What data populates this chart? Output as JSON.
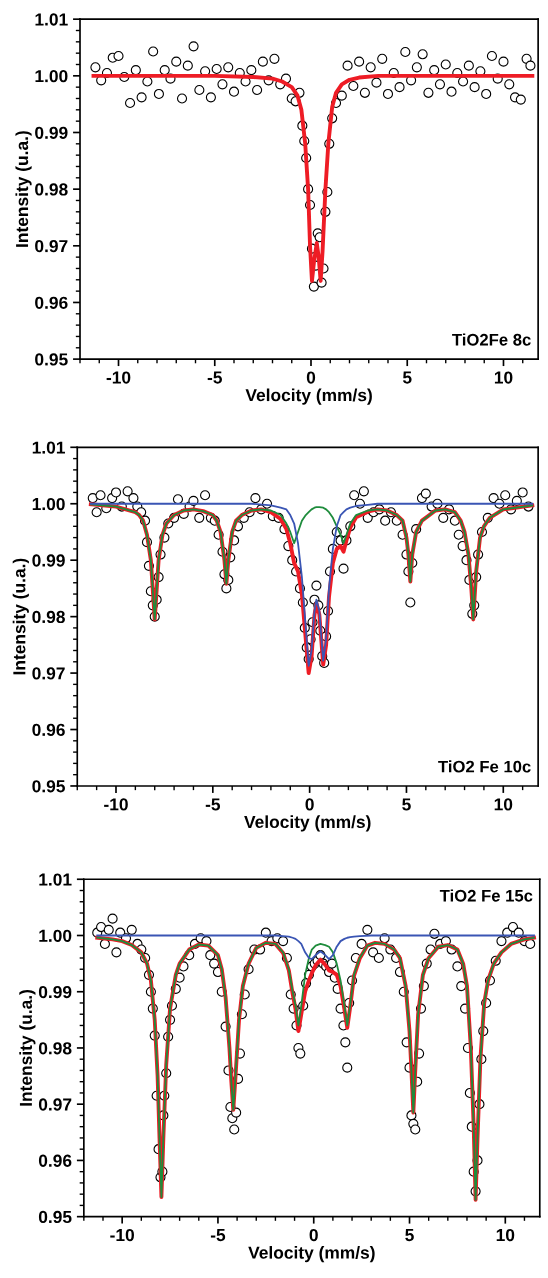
{
  "chart_data": [
    {
      "type": "scatter",
      "xlabel": "Velocity (mm/s)",
      "ylabel": "Intensity (u.a.)",
      "annotations": [
        "TiO2Fe 8c"
      ],
      "grid": false,
      "xlim": [
        -12,
        11.8
      ],
      "ylim": [
        0.95,
        1.01
      ],
      "xticks": [
        -10,
        -5,
        0,
        5,
        10
      ],
      "yticks": [
        {
          "value": 0.95,
          "label": "0.95"
        },
        {
          "value": 0.96,
          "label": "0.96"
        },
        {
          "value": 0.97,
          "label": "0.97"
        },
        {
          "value": 0.98,
          "label": "0.98"
        },
        {
          "value": 0.99,
          "label": "0.99"
        },
        {
          "value": 1.0,
          "label": "1.00"
        },
        {
          "value": 1.01,
          "label": "1.01"
        }
      ],
      "series": [
        {
          "marker": "circle",
          "color": "#000000",
          "x": [
            -11.2,
            -10.9,
            -10.6,
            -10.3,
            -10.0,
            -9.7,
            -9.4,
            -9.1,
            -8.8,
            -8.5,
            -8.2,
            -7.9,
            -7.6,
            -7.3,
            -7.0,
            -6.7,
            -6.4,
            -6.1,
            -5.8,
            -5.5,
            -5.2,
            -4.9,
            -4.6,
            -4.3,
            -4.0,
            -3.7,
            -3.4,
            -3.1,
            -2.8,
            -2.5,
            -2.2,
            -1.9,
            -1.6,
            -1.3,
            -1.0,
            -0.8,
            -0.6,
            -0.45,
            -0.35,
            -0.25,
            -0.15,
            -0.05,
            0.05,
            0.15,
            0.25,
            0.35,
            0.45,
            0.55,
            0.65,
            0.75,
            0.85,
            0.95,
            1.1,
            1.3,
            1.6,
            1.9,
            2.2,
            2.5,
            2.8,
            3.1,
            3.4,
            3.7,
            4.0,
            4.3,
            4.6,
            4.9,
            5.2,
            5.5,
            5.8,
            6.1,
            6.4,
            6.7,
            7.0,
            7.3,
            7.6,
            7.9,
            8.2,
            8.5,
            8.8,
            9.1,
            9.4,
            9.7,
            10.0,
            10.3,
            10.6,
            10.9,
            11.2,
            11.4
          ],
          "values": [
            1.0015,
            0.9992,
            1.0005,
            1.0032,
            1.0035,
            0.9998,
            0.9952,
            1.001,
            0.9962,
            0.999,
            1.0043,
            0.9968,
            1.001,
            0.9995,
            1.0025,
            0.996,
            1.0018,
            1.0052,
            0.9975,
            1.0008,
            0.9962,
            1.0012,
            0.9985,
            1.0015,
            0.9972,
            1.0005,
            0.999,
            1.001,
            0.9975,
            1.0025,
            0.9992,
            1.003,
            0.9985,
            0.9995,
            0.996,
            0.9955,
            0.997,
            0.9912,
            0.9885,
            0.9855,
            0.98,
            0.9772,
            0.9695,
            0.9628,
            0.9665,
            0.9722,
            0.9715,
            0.9635,
            0.966,
            0.976,
            0.9795,
            0.988,
            0.9925,
            0.9952,
            0.9965,
            1.0018,
            0.9982,
            1.0025,
            0.997,
            1.0015,
            0.9988,
            1.003,
            0.9968,
            1.0005,
            0.998,
            1.0042,
            0.9992,
            1.0015,
            1.0038,
            0.997,
            1.001,
            0.9985,
            1.002,
            0.9972,
            1.0005,
            0.999,
            1.0018,
            0.998,
            1.0008,
            0.9968,
            1.0035,
            0.9995,
            1.0025,
            0.9985,
            0.9962,
            0.9958,
            1.003,
            1.0018
          ]
        },
        {
          "type": "line",
          "color": "#ee1c25",
          "x": [
            -11.3,
            -8,
            -5,
            -3,
            -2,
            -1.5,
            -1,
            -0.7,
            -0.5,
            -0.3,
            -0.15,
            -0.05,
            0.05,
            0.15,
            0.3,
            0.4,
            0.5,
            0.6,
            0.75,
            0.9,
            1.1,
            1.3,
            1.6,
            2,
            2.5,
            3.5,
            6,
            9,
            11.5
          ],
          "values": [
            1.0,
            1.0,
            1.0,
            0.9998,
            0.9995,
            0.999,
            0.998,
            0.9965,
            0.994,
            0.988,
            0.98,
            0.97,
            0.9638,
            0.967,
            0.9705,
            0.968,
            0.9638,
            0.969,
            0.98,
            0.988,
            0.9945,
            0.997,
            0.9985,
            0.9993,
            0.9997,
            1.0,
            1.0,
            1.0,
            1.0
          ]
        }
      ]
    },
    {
      "type": "scatter",
      "xlabel": "Velocity (mm/s)",
      "ylabel": "Intensity (u.a.)",
      "annotations": [
        "TiO2 Fe 10c"
      ],
      "grid": false,
      "xlim": [
        -12,
        11.8
      ],
      "ylim": [
        0.95,
        1.01
      ],
      "xticks": [
        -10,
        -5,
        0,
        5,
        10
      ],
      "yticks": [
        {
          "value": 0.95,
          "label": "0.95"
        },
        {
          "value": 0.96,
          "label": "0.96"
        },
        {
          "value": 0.97,
          "label": "0.97"
        },
        {
          "value": 0.98,
          "label": "0.98"
        },
        {
          "value": 0.99,
          "label": "0.99"
        },
        {
          "value": 1.0,
          "label": "1.00"
        },
        {
          "value": 1.01,
          "label": "1.01"
        }
      ],
      "series": [
        {
          "marker": "circle",
          "color": "#000000",
          "x": [
            -11.2,
            -11.0,
            -10.8,
            -10.5,
            -10.2,
            -10.0,
            -9.7,
            -9.4,
            -9.1,
            -8.9,
            -8.7,
            -8.5,
            -8.4,
            -8.3,
            -8.2,
            -8.1,
            -8.0,
            -7.9,
            -7.8,
            -7.7,
            -7.5,
            -7.3,
            -7.0,
            -6.8,
            -6.5,
            -6.2,
            -6.0,
            -5.7,
            -5.4,
            -5.1,
            -4.9,
            -4.7,
            -4.5,
            -4.4,
            -4.3,
            -4.2,
            -4.1,
            -3.9,
            -3.7,
            -3.4,
            -3.1,
            -2.8,
            -2.5,
            -2.2,
            -1.9,
            -1.6,
            -1.3,
            -1.1,
            -0.9,
            -0.7,
            -0.5,
            -0.35,
            -0.25,
            -0.15,
            -0.05,
            0.05,
            0.15,
            0.25,
            0.35,
            0.45,
            0.55,
            0.65,
            0.75,
            0.85,
            0.95,
            1.05,
            1.2,
            1.4,
            1.6,
            1.75,
            1.9,
            2.1,
            2.3,
            2.6,
            2.8,
            3.0,
            3.3,
            3.6,
            3.9,
            4.2,
            4.5,
            4.8,
            5.0,
            5.1,
            5.2,
            5.3,
            5.5,
            5.8,
            6.0,
            6.3,
            6.6,
            6.9,
            7.2,
            7.5,
            7.7,
            7.9,
            8.1,
            8.25,
            8.4,
            8.5,
            8.6,
            8.7,
            8.9,
            9.2,
            9.5,
            9.8,
            10.1,
            10.4,
            10.7,
            11.0,
            11.3
          ],
          "values": [
            1.001,
            0.9985,
            1.0015,
            0.9992,
            1.001,
            1.002,
            0.9995,
            1.0022,
            1.001,
            0.9995,
            0.9985,
            0.997,
            0.9932,
            0.989,
            0.9845,
            0.982,
            0.98,
            0.983,
            0.987,
            0.991,
            0.994,
            0.9965,
            0.9975,
            1.0008,
            0.9982,
            0.9995,
            1.0005,
            0.9975,
            1.0015,
            0.9975,
            0.997,
            0.9945,
            0.9915,
            0.9875,
            0.985,
            0.9865,
            0.9905,
            0.9935,
            0.996,
            0.9975,
            0.9985,
            1.001,
            0.999,
            1.0,
            0.9978,
            0.9975,
            0.9955,
            0.9925,
            0.99,
            0.988,
            0.985,
            0.9825,
            0.978,
            0.9745,
            0.9725,
            0.976,
            0.979,
            0.983,
            0.9855,
            0.982,
            0.9775,
            0.973,
            0.9718,
            0.9765,
            0.981,
            0.988,
            0.992,
            0.995,
            0.9935,
            0.9885,
            0.9935,
            0.996,
            1.0015,
            1.0,
            1.0022,
            0.9975,
            0.9985,
            0.999,
            0.997,
            0.9985,
            0.997,
            0.9945,
            0.991,
            0.988,
            0.9825,
            0.9895,
            0.9955,
            1.001,
            1.0018,
            0.9995,
            1.0,
            0.9975,
            0.999,
            0.997,
            0.9945,
            0.9925,
            0.99,
            0.9865,
            0.9805,
            0.982,
            0.987,
            0.991,
            0.995,
            0.9975,
            1.001,
            1.0,
            1.0015,
            0.999,
            1.0005,
            1.002,
            0.9995
          ]
        },
        {
          "type": "line",
          "color": "#ee1c25",
          "x": [
            -11.3,
            -10,
            -9,
            -8.8,
            -8.6,
            -8.4,
            -8.2,
            -8.0,
            -7.8,
            -7.6,
            -7.4,
            -7.0,
            -6.5,
            -6,
            -5.5,
            -5,
            -4.8,
            -4.6,
            -4.4,
            -4.3,
            -4.2,
            -4.0,
            -3.8,
            -3.5,
            -3,
            -2.5,
            -2,
            -1.5,
            -1.2,
            -1.0,
            -0.8,
            -0.6,
            -0.4,
            -0.2,
            -0.05,
            0.1,
            0.25,
            0.35,
            0.5,
            0.7,
            0.85,
            1.0,
            1.2,
            1.4,
            1.6,
            1.75,
            1.9,
            2.1,
            2.4,
            3,
            3.5,
            4,
            4.5,
            4.8,
            5.0,
            5.1,
            5.2,
            5.3,
            5.5,
            5.8,
            6.5,
            7,
            7.5,
            7.8,
            8.0,
            8.2,
            8.35,
            8.45,
            8.6,
            8.8,
            9.0,
            9.3,
            10,
            11.5
          ],
          "values": [
            0.9999,
            0.9995,
            0.9985,
            0.998,
            0.997,
            0.9945,
            0.99,
            0.9795,
            0.99,
            0.9945,
            0.9965,
            0.998,
            0.9988,
            0.999,
            0.9987,
            0.998,
            0.997,
            0.995,
            0.99,
            0.9858,
            0.99,
            0.995,
            0.997,
            0.998,
            0.9988,
            0.999,
            0.9985,
            0.9973,
            0.9955,
            0.993,
            0.9895,
            0.988,
            0.984,
            0.976,
            0.97,
            0.973,
            0.9803,
            0.9824,
            0.9804,
            0.9715,
            0.975,
            0.9835,
            0.9895,
            0.992,
            0.9925,
            0.9915,
            0.9935,
            0.9958,
            0.9976,
            0.9986,
            0.999,
            0.9988,
            0.998,
            0.997,
            0.994,
            0.991,
            0.9862,
            0.991,
            0.995,
            0.997,
            0.9988,
            0.999,
            0.9985,
            0.997,
            0.995,
            0.991,
            0.985,
            0.9795,
            0.988,
            0.994,
            0.996,
            0.9975,
            0.999,
            0.9997
          ]
        },
        {
          "type": "line",
          "color": "#1e8c3c",
          "x": [
            -11.3,
            -10,
            -9,
            -8.8,
            -8.6,
            -8.4,
            -8.2,
            -8.0,
            -7.8,
            -7.6,
            -7.4,
            -7.0,
            -6.5,
            -6,
            -5.5,
            -5,
            -4.8,
            -4.6,
            -4.4,
            -4.3,
            -4.2,
            -4.0,
            -3.8,
            -3.5,
            -3,
            -2.5,
            -2,
            -1.5,
            -1.2,
            -1.0,
            -0.8,
            -0.6,
            -0.4,
            -0.2,
            -0.05,
            0.1,
            0.25,
            0.35,
            0.5,
            0.7,
            0.85,
            1.0,
            1.2,
            1.4,
            1.6,
            1.75,
            1.9,
            2.1,
            2.4,
            3,
            3.5,
            4,
            4.5,
            4.8,
            5.0,
            5.1,
            5.2,
            5.3,
            5.5,
            5.8,
            6.5,
            7,
            7.5,
            7.8,
            8.0,
            8.2,
            8.35,
            8.45,
            8.6,
            8.8,
            9.0,
            9.3,
            10,
            11.5
          ],
          "values": [
            0.9999,
            0.9995,
            0.9985,
            0.998,
            0.997,
            0.9945,
            0.99,
            0.9795,
            0.99,
            0.9945,
            0.9965,
            0.998,
            0.9988,
            0.999,
            0.9987,
            0.998,
            0.997,
            0.995,
            0.99,
            0.9858,
            0.99,
            0.995,
            0.997,
            0.998,
            0.9988,
            0.999,
            0.9988,
            0.998,
            0.9965,
            0.995,
            0.993,
            0.995,
            0.997,
            0.998,
            0.9985,
            0.999,
            0.9993,
            0.9994,
            0.9994,
            0.9993,
            0.999,
            0.9985,
            0.9975,
            0.996,
            0.9945,
            0.993,
            0.9945,
            0.9965,
            0.998,
            0.9988,
            0.999,
            0.9988,
            0.998,
            0.997,
            0.994,
            0.991,
            0.9862,
            0.991,
            0.995,
            0.997,
            0.9988,
            0.999,
            0.9985,
            0.997,
            0.995,
            0.991,
            0.985,
            0.9795,
            0.988,
            0.994,
            0.996,
            0.9975,
            0.999,
            0.9997
          ]
        },
        {
          "type": "line",
          "color": "#3a55b4",
          "x": [
            -11.3,
            -10,
            -9,
            -8,
            -6,
            -4,
            -3,
            -2,
            -1.5,
            -1.2,
            -1.0,
            -0.8,
            -0.6,
            -0.4,
            -0.2,
            -0.05,
            0.1,
            0.25,
            0.35,
            0.5,
            0.7,
            0.85,
            1.0,
            1.2,
            1.4,
            1.6,
            1.75,
            1.9,
            2.1,
            2.4,
            3,
            3.5,
            5,
            8,
            11.5
          ],
          "values": [
            1.0,
            1.0,
            1.0,
            1.0,
            1.0,
            1.0,
            1.0,
            0.9997,
            0.9993,
            0.999,
            0.998,
            0.9965,
            0.993,
            0.987,
            0.978,
            0.9713,
            0.974,
            0.981,
            0.983,
            0.981,
            0.9722,
            0.976,
            0.985,
            0.992,
            0.996,
            0.998,
            0.9985,
            0.999,
            0.9993,
            0.9996,
            0.9998,
            1.0,
            1.0,
            1.0,
            1.0
          ]
        }
      ]
    },
    {
      "type": "scatter",
      "xlabel": "Velocity (mm/s)",
      "ylabel": "Intensity (u.a.)",
      "annotations": [
        "TiO2 Fe 15c"
      ],
      "grid": false,
      "xlim": [
        -12,
        11.8
      ],
      "ylim": [
        0.95,
        1.01
      ],
      "xticks": [
        -10,
        -5,
        0,
        5,
        10
      ],
      "yticks": [
        {
          "value": 0.95,
          "label": "0.95"
        },
        {
          "value": 0.96,
          "label": "0.96"
        },
        {
          "value": 0.97,
          "label": "0.97"
        },
        {
          "value": 0.98,
          "label": "0.98"
        },
        {
          "value": 0.99,
          "label": "0.99"
        },
        {
          "value": 1.0,
          "label": "1.00"
        },
        {
          "value": 1.01,
          "label": "1.01"
        }
      ],
      "series": [
        {
          "marker": "circle",
          "color": "#000000",
          "x": [
            -11.3,
            -11.1,
            -10.9,
            -10.7,
            -10.5,
            -10.3,
            -10.1,
            -9.8,
            -9.5,
            -9.2,
            -9.0,
            -8.8,
            -8.6,
            -8.5,
            -8.4,
            -8.3,
            -8.2,
            -8.1,
            -8.0,
            -7.9,
            -7.85,
            -7.8,
            -7.7,
            -7.6,
            -7.5,
            -7.4,
            -7.2,
            -7.0,
            -6.8,
            -6.5,
            -6.2,
            -5.9,
            -5.6,
            -5.4,
            -5.2,
            -5.0,
            -4.8,
            -4.6,
            -4.45,
            -4.35,
            -4.25,
            -4.15,
            -4.05,
            -3.95,
            -3.85,
            -3.75,
            -3.6,
            -3.4,
            -3.1,
            -2.8,
            -2.5,
            -2.2,
            -1.9,
            -1.6,
            -1.4,
            -1.2,
            -1.05,
            -0.9,
            -0.8,
            -0.7,
            -0.55,
            -0.4,
            -0.25,
            -0.1,
            0.05,
            0.2,
            0.35,
            0.5,
            0.65,
            0.8,
            0.95,
            1.1,
            1.25,
            1.4,
            1.55,
            1.65,
            1.75,
            1.85,
            2.0,
            2.2,
            2.5,
            2.8,
            3.1,
            3.4,
            3.7,
            4.0,
            4.3,
            4.5,
            4.7,
            4.85,
            5.0,
            5.1,
            5.2,
            5.3,
            5.4,
            5.5,
            5.6,
            5.75,
            5.9,
            6.1,
            6.3,
            6.6,
            6.9,
            7.2,
            7.5,
            7.7,
            7.9,
            8.05,
            8.15,
            8.25,
            8.35,
            8.45,
            8.55,
            8.65,
            8.75,
            8.85,
            9.0,
            9.2,
            9.5,
            9.8,
            10.1,
            10.4,
            10.7,
            11.0,
            11.3
          ],
          "values": [
            1.0005,
            1.0015,
            0.9985,
            1.001,
            1.003,
            0.997,
            1.0005,
            0.9995,
            1.001,
            0.9985,
            0.9975,
            0.996,
            0.993,
            0.99,
            0.987,
            0.9822,
            0.9715,
            0.962,
            0.957,
            0.958,
            0.968,
            0.9715,
            0.9755,
            0.982,
            0.985,
            0.9875,
            0.9905,
            0.9925,
            0.9945,
            0.9965,
            0.9985,
            0.9995,
            0.999,
            0.9965,
            0.995,
            0.9935,
            0.99,
            0.9838,
            0.976,
            0.9695,
            0.9675,
            0.9655,
            0.9685,
            0.9745,
            0.979,
            0.986,
            0.9895,
            0.994,
            0.9975,
            0.9975,
            1.0005,
            0.999,
            0.9995,
            0.999,
            0.996,
            0.9895,
            0.987,
            0.984,
            0.98,
            0.979,
            0.9875,
            0.9915,
            0.993,
            0.9945,
            0.995,
            0.9955,
            0.9965,
            0.995,
            0.9945,
            0.9935,
            0.995,
            0.9925,
            0.9905,
            0.987,
            0.984,
            0.981,
            0.9765,
            0.988,
            0.992,
            0.996,
            0.9985,
            1.001,
            0.997,
            0.996,
            0.9995,
            0.9975,
            0.996,
            0.9935,
            0.99,
            0.981,
            0.9765,
            0.968,
            0.9665,
            0.9655,
            0.974,
            0.979,
            0.987,
            0.991,
            0.995,
            0.9975,
            1.0003,
            0.9985,
            0.999,
            0.9975,
            0.9945,
            0.991,
            0.987,
            0.98,
            0.972,
            0.966,
            0.958,
            0.9545,
            0.96,
            0.97,
            0.978,
            0.983,
            0.988,
            0.992,
            0.9955,
            0.999,
            1.0005,
            1.0015,
            1.0005,
            0.999,
            0.9985
          ]
        },
        {
          "type": "line",
          "color": "#ee1c25",
          "x": [
            -11.3,
            -10.5,
            -10,
            -9.5,
            -9,
            -8.7,
            -8.5,
            -8.3,
            -8.15,
            -8.05,
            -7.95,
            -7.85,
            -7.7,
            -7.5,
            -7.2,
            -7,
            -6.5,
            -6,
            -5.5,
            -5,
            -4.8,
            -4.6,
            -4.4,
            -4.3,
            -4.2,
            -4.1,
            -3.9,
            -3.7,
            -3.4,
            -3,
            -2.5,
            -2,
            -1.6,
            -1.3,
            -1.1,
            -0.95,
            -0.8,
            -0.65,
            -0.45,
            -0.25,
            -0.1,
            0.1,
            0.35,
            0.6,
            0.8,
            1.0,
            1.2,
            1.4,
            1.6,
            1.75,
            1.9,
            2.1,
            2.4,
            2.8,
            3.2,
            3.7,
            4.2,
            4.5,
            4.8,
            5.0,
            5.1,
            5.2,
            5.3,
            5.45,
            5.7,
            6.0,
            6.5,
            7,
            7.5,
            7.8,
            8.0,
            8.2,
            8.35,
            8.45,
            8.55,
            8.7,
            8.9,
            9.1,
            9.4,
            9.8,
            10.3,
            11,
            11.5
          ],
          "values": [
            0.9996,
            0.9993,
            0.999,
            0.9983,
            0.997,
            0.995,
            0.992,
            0.985,
            0.975,
            0.964,
            0.9535,
            0.964,
            0.977,
            0.987,
            0.993,
            0.995,
            0.9975,
            0.9984,
            0.9982,
            0.9965,
            0.994,
            0.989,
            0.98,
            0.974,
            0.969,
            0.974,
            0.985,
            0.991,
            0.995,
            0.9978,
            0.9987,
            0.9985,
            0.9969,
            0.9938,
            0.9896,
            0.9869,
            0.983,
            0.986,
            0.99,
            0.992,
            0.9933,
            0.9947,
            0.9957,
            0.9948,
            0.9938,
            0.9935,
            0.993,
            0.991,
            0.9869,
            0.9836,
            0.9872,
            0.9928,
            0.9959,
            0.9982,
            0.9987,
            0.9985,
            0.9975,
            0.996,
            0.991,
            0.983,
            0.976,
            0.9685,
            0.976,
            0.986,
            0.993,
            0.996,
            0.998,
            0.9983,
            0.9975,
            0.995,
            0.991,
            0.98,
            0.966,
            0.953,
            0.964,
            0.978,
            0.988,
            0.992,
            0.995,
            0.997,
            0.9985,
            0.9993,
            0.9996
          ]
        },
        {
          "type": "line",
          "color": "#1e8c3c",
          "x": [
            -11.3,
            -10.5,
            -10,
            -9.5,
            -9,
            -8.7,
            -8.5,
            -8.3,
            -8.15,
            -8.05,
            -7.95,
            -7.85,
            -7.7,
            -7.5,
            -7.2,
            -7,
            -6.5,
            -6,
            -5.5,
            -5,
            -4.8,
            -4.6,
            -4.4,
            -4.3,
            -4.2,
            -4.1,
            -3.9,
            -3.7,
            -3.4,
            -3,
            -2.5,
            -2,
            -1.6,
            -1.3,
            -1.1,
            -0.95,
            -0.8,
            -0.65,
            -0.45,
            -0.25,
            -0.1,
            0.1,
            0.35,
            0.6,
            0.8,
            1.0,
            1.2,
            1.4,
            1.6,
            1.75,
            1.9,
            2.1,
            2.4,
            2.8,
            3.2,
            3.7,
            4.2,
            4.5,
            4.8,
            5.0,
            5.1,
            5.2,
            5.3,
            5.45,
            5.7,
            6.0,
            6.5,
            7,
            7.5,
            7.8,
            8.0,
            8.2,
            8.35,
            8.45,
            8.55,
            8.7,
            8.9,
            9.1,
            9.4,
            9.8,
            10.3,
            11,
            11.5
          ],
          "values": [
            0.9996,
            0.9993,
            0.999,
            0.9983,
            0.997,
            0.995,
            0.992,
            0.985,
            0.975,
            0.964,
            0.9535,
            0.964,
            0.977,
            0.987,
            0.993,
            0.995,
            0.9975,
            0.9984,
            0.9982,
            0.9965,
            0.994,
            0.989,
            0.98,
            0.974,
            0.969,
            0.974,
            0.985,
            0.991,
            0.995,
            0.9978,
            0.9987,
            0.9985,
            0.997,
            0.994,
            0.99,
            0.9875,
            0.984,
            0.9875,
            0.993,
            0.996,
            0.9975,
            0.9982,
            0.9985,
            0.9983,
            0.998,
            0.997,
            0.995,
            0.992,
            0.9875,
            0.984,
            0.9875,
            0.993,
            0.996,
            0.9982,
            0.9987,
            0.9985,
            0.9975,
            0.996,
            0.991,
            0.983,
            0.976,
            0.9685,
            0.976,
            0.986,
            0.993,
            0.996,
            0.998,
            0.9983,
            0.9975,
            0.995,
            0.991,
            0.98,
            0.966,
            0.953,
            0.964,
            0.978,
            0.988,
            0.992,
            0.995,
            0.997,
            0.9985,
            0.9993,
            0.9996
          ]
        },
        {
          "type": "line",
          "color": "#3a55b4",
          "x": [
            -11.3,
            -8,
            -5,
            -2,
            -1.6,
            -1.3,
            -1.1,
            -0.95,
            -0.8,
            -0.65,
            -0.45,
            -0.25,
            -0.1,
            0.1,
            0.35,
            0.6,
            0.8,
            1.0,
            1.2,
            1.4,
            1.6,
            1.75,
            1.9,
            2.1,
            2.4,
            3,
            5,
            8,
            11.5
          ],
          "values": [
            1.0,
            1.0,
            1.0,
            1.0,
            0.9999,
            0.9998,
            0.9996,
            0.9994,
            0.999,
            0.9985,
            0.997,
            0.996,
            0.9958,
            0.9965,
            0.9972,
            0.9965,
            0.9958,
            0.9965,
            0.998,
            0.999,
            0.9994,
            0.9996,
            0.9997,
            0.9998,
            0.9999,
            1.0,
            1.0,
            1.0,
            1.0
          ]
        }
      ]
    }
  ]
}
